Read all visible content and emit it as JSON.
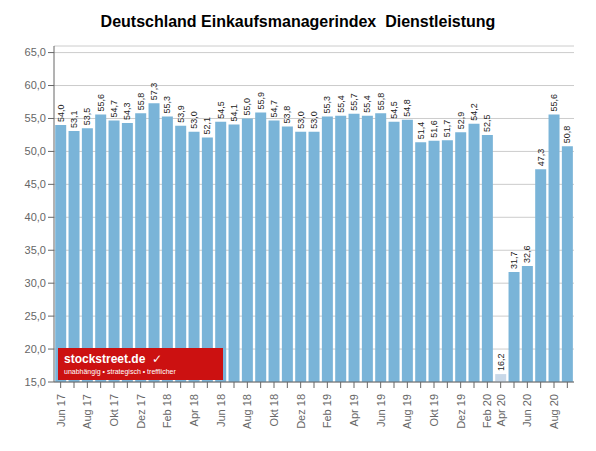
{
  "chart_data": {
    "type": "bar",
    "title": "Deutschland Einkaufsmanagerindex  Dienstleistung",
    "categories": [
      "Jun 17",
      null,
      "Aug 17",
      null,
      "Okt 17",
      null,
      "Dez 17",
      null,
      "Feb 18",
      null,
      "Apr 18",
      null,
      "Jun 18",
      null,
      "Aug 18",
      null,
      "Okt 18",
      null,
      "Dez 18",
      null,
      "Feb 19",
      null,
      "Apr 19",
      null,
      "Jun 19",
      null,
      "Aug 19",
      null,
      "Okt 19",
      null,
      "Dez 19",
      null,
      "Feb 20",
      "Apr 20",
      null,
      "Jun 20",
      null,
      "Aug 20",
      null
    ],
    "values": [
      54.0,
      53.1,
      53.5,
      55.6,
      54.7,
      54.3,
      55.8,
      57.3,
      55.3,
      53.9,
      53.0,
      52.1,
      54.5,
      54.1,
      55.0,
      55.9,
      54.7,
      53.8,
      53.0,
      53.0,
      55.3,
      55.4,
      55.7,
      55.4,
      55.8,
      54.5,
      54.8,
      51.4,
      51.6,
      51.7,
      52.9,
      54.2,
      52.5,
      16.2,
      31.7,
      32.6,
      47.3,
      55.6,
      50.8
    ],
    "value_labels": [
      "54,0",
      "53,1",
      "53,5",
      "55,6",
      "54,7",
      "54,3",
      "55,8",
      "57,3",
      "55,3",
      "53,9",
      "53,0",
      "52,1",
      "54,5",
      "54,1",
      "55,0",
      "55,9",
      "54,7",
      "53,8",
      "53,0",
      "53,0",
      "55,3",
      "55,4",
      "55,7",
      "55,4",
      "55,8",
      "54,5",
      "54,8",
      "51,4",
      "51,6",
      "51,7",
      "52,9",
      "54,2",
      "52,5",
      "16,2",
      "31,7",
      "32,6",
      "47,3",
      "55,6",
      "50,8"
    ],
    "colors": [
      "#7ab4d8",
      "#7ab4d8",
      "#7ab4d8",
      "#7ab4d8",
      "#7ab4d8",
      "#7ab4d8",
      "#7ab4d8",
      "#7ab4d8",
      "#7ab4d8",
      "#7ab4d8",
      "#7ab4d8",
      "#7ab4d8",
      "#7ab4d8",
      "#7ab4d8",
      "#7ab4d8",
      "#7ab4d8",
      "#7ab4d8",
      "#7ab4d8",
      "#7ab4d8",
      "#7ab4d8",
      "#7ab4d8",
      "#7ab4d8",
      "#7ab4d8",
      "#7ab4d8",
      "#7ab4d8",
      "#7ab4d8",
      "#7ab4d8",
      "#7ab4d8",
      "#7ab4d8",
      "#7ab4d8",
      "#7ab4d8",
      "#7ab4d8",
      "#7ab4d8",
      "#c8d8e8",
      "#7ab4d8",
      "#7ab4d8",
      "#7ab4d8",
      "#7ab4d8",
      "#7ab4d8"
    ],
    "ylim": [
      15.0,
      66.0
    ],
    "yticks": [
      {
        "value": 15,
        "label": "15,0"
      },
      {
        "value": 20,
        "label": "20,0"
      },
      {
        "value": 25,
        "label": "25,0"
      },
      {
        "value": 30,
        "label": "30,0"
      },
      {
        "value": 35,
        "label": "35,0"
      },
      {
        "value": 40,
        "label": "40,0"
      },
      {
        "value": 45,
        "label": "45,0"
      },
      {
        "value": 50,
        "label": "50,0"
      },
      {
        "value": 55,
        "label": "55,0"
      },
      {
        "value": 60,
        "label": "60,0"
      },
      {
        "value": 65,
        "label": "65,0"
      }
    ],
    "grid": true,
    "data_labels": true,
    "annotations": [
      {
        "text": "stockstreet.de  ✓",
        "color": "#cc1111"
      },
      {
        "text": "unabhängig • strategisch • trefflicher",
        "color": "#cc1111"
      }
    ]
  }
}
